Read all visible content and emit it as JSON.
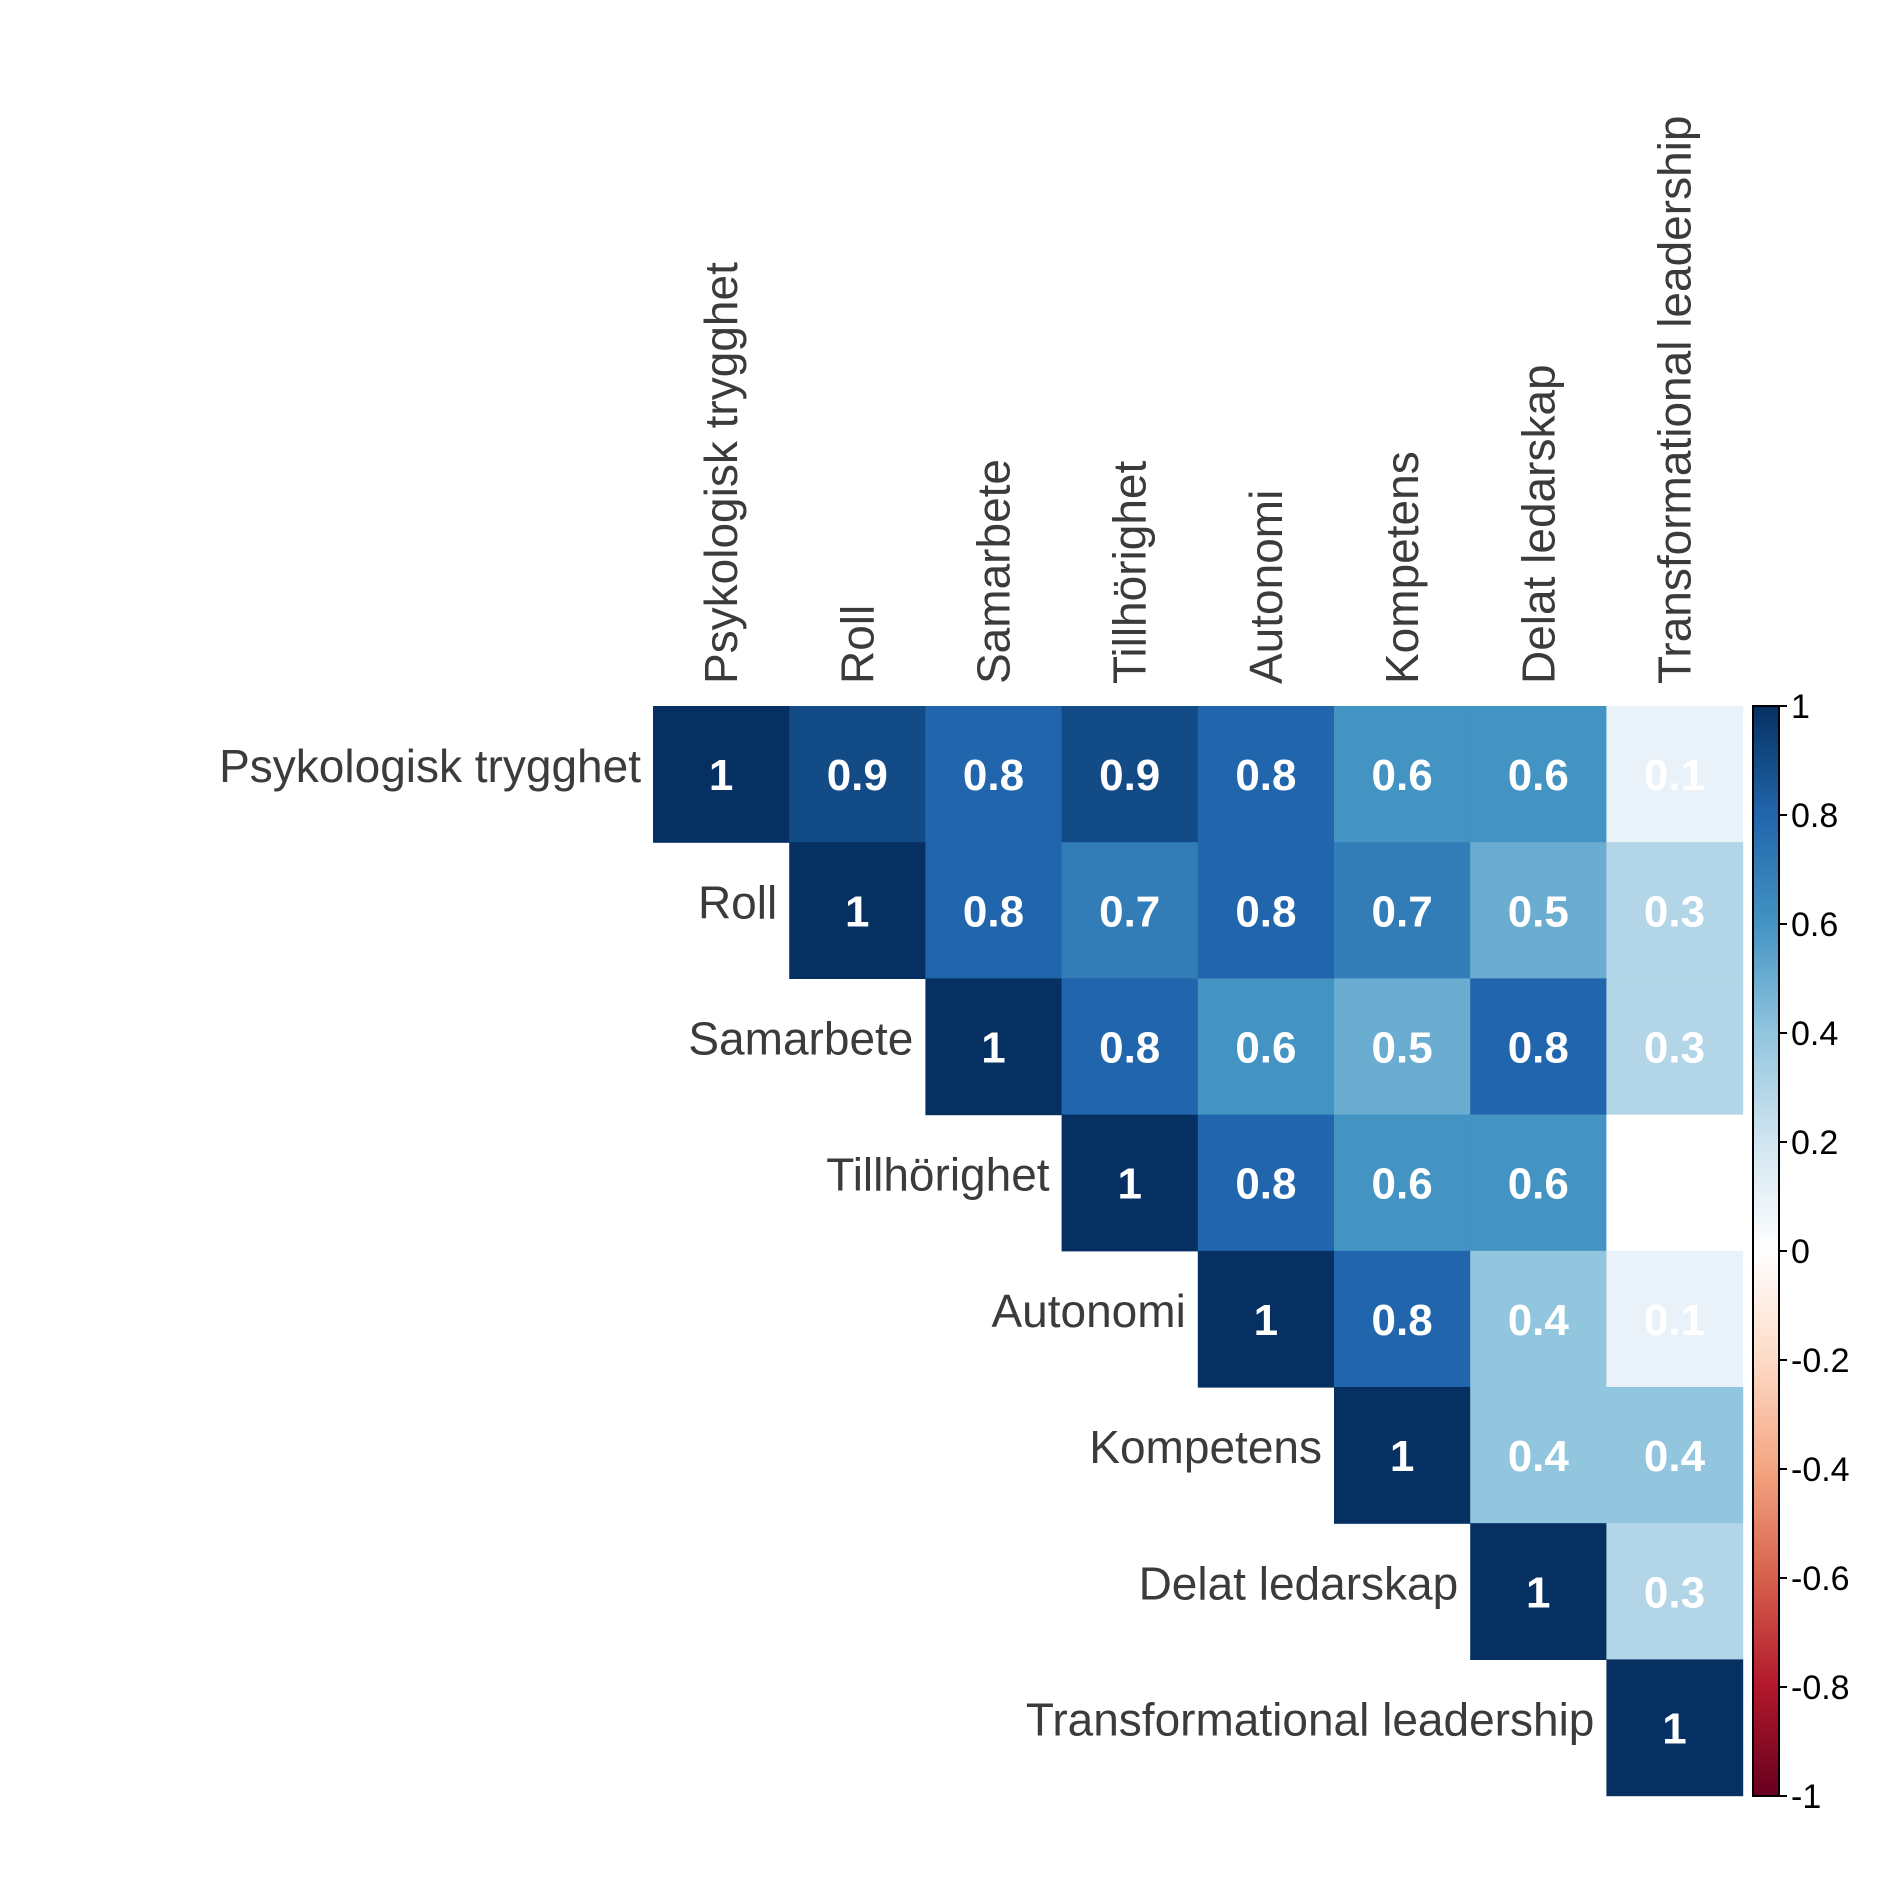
{
  "chart_data": {
    "type": "heatmap",
    "title": "",
    "variables": [
      "Psykologisk trygghet",
      "Roll",
      "Samarbete",
      "Tillhörighet",
      "Autonomi",
      "Kompetens",
      "Delat ledarskap",
      "Transformational leadership"
    ],
    "matrix": [
      [
        1,
        0.9,
        0.8,
        0.9,
        0.8,
        0.6,
        0.6,
        0.1
      ],
      [
        null,
        1,
        0.8,
        0.7,
        0.8,
        0.7,
        0.5,
        0.3
      ],
      [
        null,
        null,
        1,
        0.8,
        0.6,
        0.5,
        0.8,
        0.3
      ],
      [
        null,
        null,
        null,
        1,
        0.8,
        0.6,
        0.6,
        0
      ],
      [
        null,
        null,
        null,
        null,
        1,
        0.8,
        0.4,
        0.1
      ],
      [
        null,
        null,
        null,
        null,
        null,
        1,
        0.4,
        0.4
      ],
      [
        null,
        null,
        null,
        null,
        null,
        null,
        1,
        0.3
      ],
      [
        null,
        null,
        null,
        null,
        null,
        null,
        null,
        1
      ]
    ],
    "layout": "upper-triangle",
    "colorbar": {
      "range": [
        -1,
        1
      ],
      "ticks": [
        "1",
        "0.8",
        "0.6",
        "0.4",
        "0.2",
        "0",
        "-0.2",
        "-0.4",
        "-0.6",
        "-0.8",
        "-1"
      ],
      "palette": [
        "#67001F",
        "#B2182B",
        "#D6604D",
        "#F4A582",
        "#FDDBC7",
        "#FFFFFF",
        "#D1E5F0",
        "#92C5DE",
        "#4393C3",
        "#2166AC",
        "#053061"
      ]
    }
  }
}
